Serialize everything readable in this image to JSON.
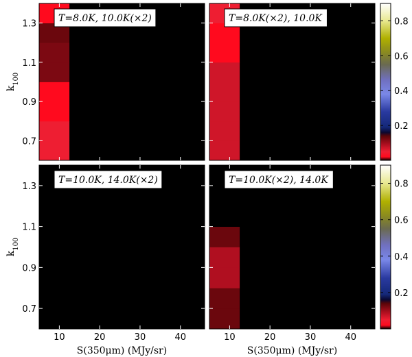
{
  "chart_data": {
    "type": "heatmap",
    "x_cells": [
      [
        5,
        12.5
      ],
      [
        12.5,
        20
      ],
      [
        20,
        27.5
      ],
      [
        27.5,
        35
      ],
      [
        35,
        42.5
      ],
      [
        42.5,
        46
      ]
    ],
    "xlim": [
      5,
      46
    ],
    "xticks": [
      10,
      20,
      30,
      40
    ],
    "xlabel": "S(350μm) (MJy/sr)",
    "y_cells": [
      [
        0.6,
        0.7
      ],
      [
        0.7,
        0.8
      ],
      [
        0.8,
        0.9
      ],
      [
        0.9,
        1.0
      ],
      [
        1.0,
        1.1
      ],
      [
        1.1,
        1.2
      ],
      [
        1.2,
        1.3
      ],
      [
        1.3,
        1.4
      ]
    ],
    "ylim": [
      0.6,
      1.4
    ],
    "yticks": [
      0.7,
      0.9,
      1.1,
      1.3
    ],
    "ylabel": "k100",
    "colorbar": {
      "range": [
        0,
        0.9
      ],
      "ticks": [
        0.2,
        0.4,
        0.6,
        0.8
      ],
      "colormap": "gist_stern-like",
      "stops": [
        [
          0.0,
          "#000000"
        ],
        [
          0.02,
          "#ff0a1e"
        ],
        [
          0.05,
          "#ee1e32"
        ],
        [
          0.09,
          "#b00f20"
        ],
        [
          0.14,
          "#5a0508"
        ],
        [
          0.16,
          "#0a0830"
        ],
        [
          0.19,
          "#142878"
        ],
        [
          0.28,
          "#2a3aa0"
        ],
        [
          0.38,
          "#7a88e8"
        ],
        [
          0.46,
          "#7070c0"
        ],
        [
          0.55,
          "#6a6a50"
        ],
        [
          0.62,
          "#8a8a20"
        ],
        [
          0.7,
          "#b0b000"
        ],
        [
          0.8,
          "#e8e890"
        ],
        [
          0.9,
          "#ffffff"
        ]
      ]
    },
    "panels": [
      {
        "title": "T=8.0K,  10.0K(×2)",
        "values": [
          [
            0.05,
            0,
            0,
            0,
            0,
            0
          ],
          [
            0.05,
            0,
            0,
            0,
            0,
            0
          ],
          [
            0.02,
            0,
            0,
            0,
            0,
            0
          ],
          [
            0.02,
            0,
            0,
            0,
            0,
            0
          ],
          [
            0.12,
            0,
            0,
            0,
            0,
            0
          ],
          [
            0.12,
            0,
            0,
            0,
            0,
            0
          ],
          [
            0.13,
            0,
            0,
            0,
            0,
            0
          ],
          [
            0.02,
            0,
            0,
            0,
            0,
            0
          ]
        ]
      },
      {
        "title": "T=8.0K(×2),  10.0K",
        "values": [
          [
            0.07,
            0,
            0,
            0,
            0,
            0
          ],
          [
            0.07,
            0,
            0,
            0,
            0,
            0
          ],
          [
            0.07,
            0,
            0,
            0,
            0,
            0
          ],
          [
            0.07,
            0,
            0,
            0,
            0,
            0
          ],
          [
            0.07,
            0,
            0,
            0,
            0,
            0
          ],
          [
            0.02,
            0,
            0,
            0,
            0,
            0
          ],
          [
            0.02,
            0,
            0,
            0,
            0,
            0
          ],
          [
            0.05,
            0,
            0,
            0,
            0,
            0
          ]
        ]
      },
      {
        "title": "T=10.0K,  14.0K(×2)",
        "values": [
          [
            0,
            0,
            0,
            0,
            0,
            0
          ],
          [
            0,
            0,
            0,
            0,
            0,
            0
          ],
          [
            0,
            0,
            0,
            0,
            0,
            0
          ],
          [
            0,
            0,
            0,
            0,
            0,
            0
          ],
          [
            0,
            0,
            0,
            0,
            0,
            0
          ],
          [
            0,
            0,
            0,
            0,
            0,
            0
          ],
          [
            0,
            0,
            0,
            0,
            0,
            0
          ],
          [
            0,
            0,
            0,
            0,
            0,
            0
          ]
        ]
      },
      {
        "title": "T=10.0K(×2),  14.0K",
        "values": [
          [
            0.13,
            0,
            0,
            0,
            0,
            0
          ],
          [
            0.13,
            0,
            0,
            0,
            0,
            0
          ],
          [
            0.09,
            0,
            0,
            0,
            0,
            0
          ],
          [
            0.09,
            0,
            0,
            0,
            0,
            0
          ],
          [
            0.13,
            0,
            0,
            0,
            0,
            0
          ],
          [
            0,
            0,
            0,
            0,
            0,
            0
          ],
          [
            0,
            0,
            0,
            0,
            0,
            0
          ],
          [
            0,
            0,
            0,
            0,
            0,
            0
          ]
        ]
      }
    ]
  }
}
